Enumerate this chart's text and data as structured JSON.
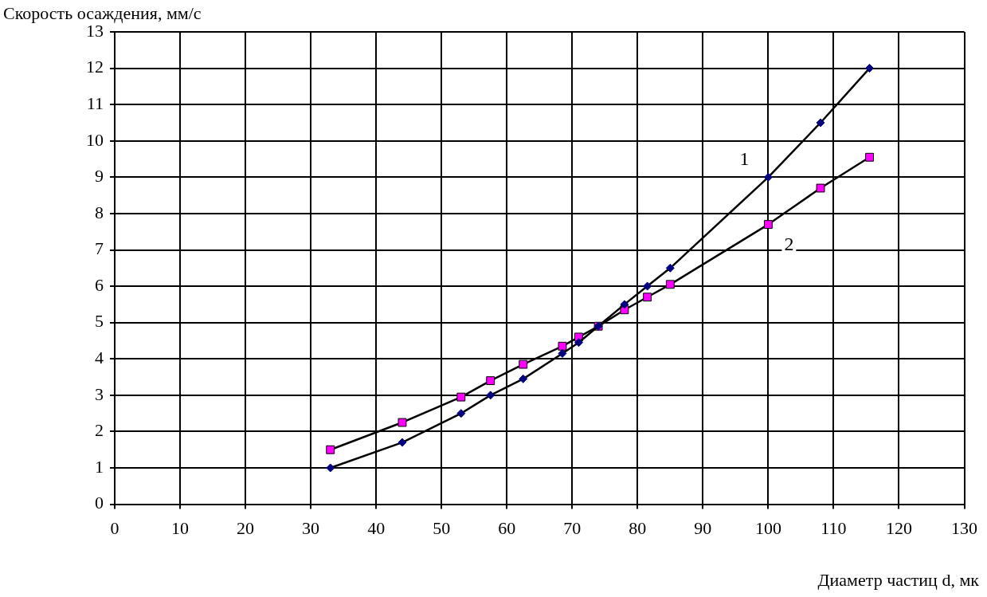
{
  "chart_data": {
    "type": "line",
    "xlabel": "Диаметр частиц d, мк",
    "ylabel": "Скорость осаждения, мм/с",
    "xlim": [
      0,
      130
    ],
    "xticks": [
      0,
      10,
      20,
      30,
      40,
      50,
      60,
      70,
      80,
      90,
      100,
      110,
      120,
      130
    ],
    "ylim": [
      0,
      13
    ],
    "yticks": [
      0,
      1,
      2,
      3,
      4,
      5,
      6,
      7,
      8,
      9,
      10,
      11,
      12,
      13
    ],
    "grid": true,
    "legend": false,
    "series": [
      {
        "name": "1",
        "color": "#000080",
        "marker": "diamond",
        "x": [
          33,
          44,
          53,
          57.5,
          62.5,
          68.5,
          71,
          74,
          78,
          81.5,
          85,
          100,
          108,
          115.5
        ],
        "values": [
          1.0,
          1.7,
          2.5,
          3.0,
          3.45,
          4.15,
          4.45,
          4.9,
          5.5,
          6.0,
          6.5,
          9.0,
          10.5,
          12.0
        ]
      },
      {
        "name": "2",
        "color": "#ff00ff",
        "marker": "square",
        "x": [
          33,
          44,
          53,
          57.5,
          62.5,
          68.5,
          71,
          74,
          78,
          81.5,
          85,
          100,
          108,
          115.5
        ],
        "values": [
          1.5,
          2.25,
          2.95,
          3.4,
          3.85,
          4.35,
          4.6,
          4.9,
          5.35,
          5.7,
          6.05,
          7.7,
          8.7,
          9.55
        ]
      }
    ]
  }
}
